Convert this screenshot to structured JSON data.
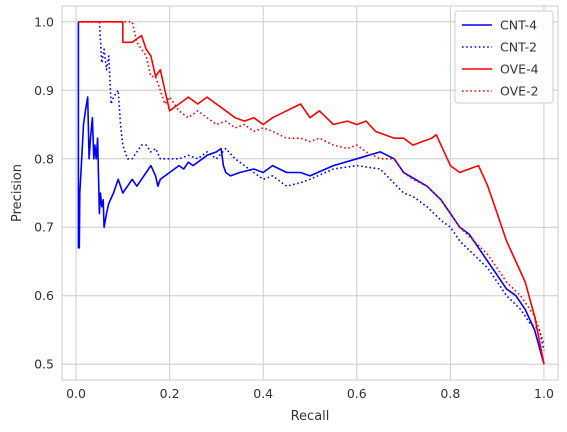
{
  "chart_data": {
    "type": "line",
    "title": "",
    "xlabel": "Recall",
    "ylabel": "Precision",
    "xlim": [
      -0.03,
      1.03
    ],
    "ylim": [
      0.477,
      1.023
    ],
    "xticks": [
      0.0,
      0.2,
      0.4,
      0.6,
      0.8,
      1.0
    ],
    "xtick_labels": [
      "0.0",
      "0.2",
      "0.4",
      "0.6",
      "0.8",
      "1.0"
    ],
    "yticks": [
      0.5,
      0.6,
      0.7,
      0.8,
      0.9,
      1.0
    ],
    "ytick_labels": [
      "0.5",
      "0.6",
      "0.7",
      "0.8",
      "0.9",
      "1.0"
    ],
    "grid": true,
    "legend_position": "top-right",
    "series": [
      {
        "name": "CNT-4",
        "color": "#0000ff",
        "dash": "solid",
        "x": [
          0.005,
          0.005,
          0.007,
          0.008,
          0.012,
          0.016,
          0.02,
          0.025,
          0.028,
          0.031,
          0.035,
          0.038,
          0.04,
          0.043,
          0.046,
          0.05,
          0.052,
          0.055,
          0.058,
          0.06,
          0.065,
          0.07,
          0.08,
          0.09,
          0.1,
          0.11,
          0.12,
          0.13,
          0.14,
          0.15,
          0.16,
          0.17,
          0.175,
          0.18,
          0.2,
          0.22,
          0.23,
          0.24,
          0.25,
          0.27,
          0.28,
          0.3,
          0.31,
          0.315,
          0.32,
          0.33,
          0.35,
          0.38,
          0.4,
          0.42,
          0.45,
          0.48,
          0.5,
          0.55,
          0.6,
          0.65,
          0.68,
          0.7,
          0.75,
          0.78,
          0.8,
          0.82,
          0.84,
          0.86,
          0.88,
          0.9,
          0.92,
          0.94,
          0.96,
          0.98,
          1.0
        ],
        "y": [
          1.0,
          0.67,
          0.67,
          0.75,
          0.8,
          0.85,
          0.87,
          0.89,
          0.8,
          0.83,
          0.86,
          0.8,
          0.82,
          0.8,
          0.83,
          0.72,
          0.75,
          0.73,
          0.74,
          0.7,
          0.72,
          0.735,
          0.75,
          0.77,
          0.75,
          0.76,
          0.77,
          0.76,
          0.77,
          0.78,
          0.79,
          0.775,
          0.76,
          0.77,
          0.78,
          0.79,
          0.785,
          0.795,
          0.79,
          0.8,
          0.805,
          0.81,
          0.815,
          0.79,
          0.78,
          0.775,
          0.78,
          0.785,
          0.78,
          0.79,
          0.78,
          0.78,
          0.775,
          0.79,
          0.8,
          0.81,
          0.8,
          0.78,
          0.76,
          0.74,
          0.72,
          0.7,
          0.69,
          0.67,
          0.65,
          0.63,
          0.61,
          0.6,
          0.58,
          0.55,
          0.5
        ]
      },
      {
        "name": "CNT-2",
        "color": "#0000ff",
        "dash": "dotted",
        "x": [
          0.005,
          0.005,
          0.02,
          0.04,
          0.05,
          0.055,
          0.06,
          0.065,
          0.07,
          0.075,
          0.08,
          0.09,
          0.095,
          0.1,
          0.105,
          0.11,
          0.12,
          0.13,
          0.14,
          0.15,
          0.16,
          0.17,
          0.18,
          0.2,
          0.22,
          0.24,
          0.26,
          0.28,
          0.3,
          0.32,
          0.34,
          0.36,
          0.38,
          0.4,
          0.42,
          0.45,
          0.48,
          0.5,
          0.55,
          0.6,
          0.65,
          0.7,
          0.72,
          0.75,
          0.78,
          0.8,
          0.82,
          0.85,
          0.88,
          0.9,
          0.92,
          0.95,
          0.97,
          0.99,
          1.0
        ],
        "y": [
          1.0,
          1.0,
          1.0,
          1.0,
          1.0,
          0.94,
          0.96,
          0.93,
          0.95,
          0.88,
          0.89,
          0.9,
          0.85,
          0.82,
          0.81,
          0.8,
          0.8,
          0.81,
          0.82,
          0.82,
          0.81,
          0.815,
          0.8,
          0.8,
          0.8,
          0.805,
          0.8,
          0.81,
          0.8,
          0.815,
          0.8,
          0.79,
          0.78,
          0.77,
          0.775,
          0.76,
          0.765,
          0.77,
          0.785,
          0.79,
          0.785,
          0.75,
          0.745,
          0.73,
          0.71,
          0.7,
          0.68,
          0.66,
          0.64,
          0.62,
          0.6,
          0.58,
          0.56,
          0.55,
          0.52
        ]
      },
      {
        "name": "OVE-4",
        "color": "#ff0000",
        "dash": "solid",
        "x": [
          0.005,
          0.05,
          0.1,
          0.1,
          0.12,
          0.14,
          0.15,
          0.16,
          0.17,
          0.18,
          0.19,
          0.2,
          0.22,
          0.24,
          0.26,
          0.28,
          0.3,
          0.32,
          0.34,
          0.36,
          0.38,
          0.4,
          0.42,
          0.45,
          0.48,
          0.5,
          0.52,
          0.55,
          0.58,
          0.6,
          0.62,
          0.64,
          0.66,
          0.68,
          0.7,
          0.72,
          0.74,
          0.76,
          0.77,
          0.78,
          0.8,
          0.82,
          0.84,
          0.86,
          0.88,
          0.9,
          0.92,
          0.94,
          0.96,
          0.98,
          1.0
        ],
        "y": [
          1.0,
          1.0,
          1.0,
          0.97,
          0.97,
          0.98,
          0.96,
          0.95,
          0.92,
          0.93,
          0.9,
          0.87,
          0.88,
          0.89,
          0.88,
          0.89,
          0.88,
          0.87,
          0.86,
          0.855,
          0.86,
          0.85,
          0.86,
          0.87,
          0.88,
          0.86,
          0.87,
          0.85,
          0.855,
          0.85,
          0.855,
          0.84,
          0.835,
          0.83,
          0.83,
          0.82,
          0.825,
          0.83,
          0.835,
          0.82,
          0.79,
          0.78,
          0.785,
          0.79,
          0.76,
          0.72,
          0.68,
          0.65,
          0.62,
          0.57,
          0.5
        ]
      },
      {
        "name": "OVE-2",
        "color": "#ff0000",
        "dash": "dotted",
        "x": [
          0.005,
          0.05,
          0.1,
          0.12,
          0.13,
          0.14,
          0.15,
          0.16,
          0.17,
          0.18,
          0.19,
          0.2,
          0.22,
          0.24,
          0.26,
          0.28,
          0.3,
          0.32,
          0.34,
          0.36,
          0.38,
          0.4,
          0.42,
          0.45,
          0.48,
          0.5,
          0.52,
          0.55,
          0.58,
          0.6,
          0.62,
          0.65,
          0.68,
          0.7,
          0.72,
          0.75,
          0.78,
          0.8,
          0.82,
          0.85,
          0.88,
          0.9,
          0.92,
          0.95,
          0.98,
          1.0
        ],
        "y": [
          1.0,
          1.0,
          1.0,
          1.0,
          0.97,
          0.96,
          0.95,
          0.92,
          0.92,
          0.9,
          0.88,
          0.89,
          0.87,
          0.86,
          0.87,
          0.86,
          0.85,
          0.855,
          0.845,
          0.85,
          0.84,
          0.845,
          0.84,
          0.83,
          0.83,
          0.825,
          0.83,
          0.82,
          0.815,
          0.82,
          0.81,
          0.8,
          0.8,
          0.78,
          0.77,
          0.76,
          0.74,
          0.72,
          0.7,
          0.68,
          0.66,
          0.64,
          0.62,
          0.6,
          0.57,
          0.53
        ]
      }
    ]
  }
}
